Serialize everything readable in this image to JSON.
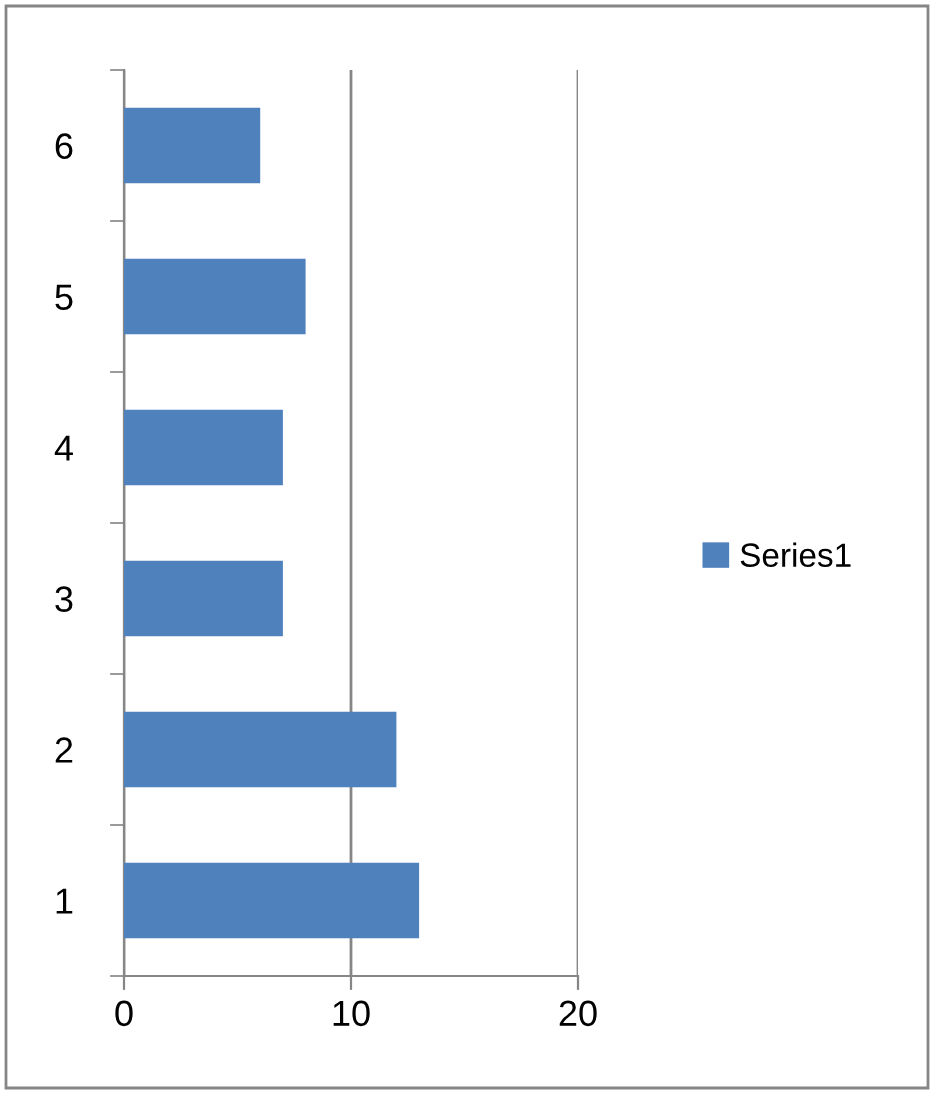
{
  "chart_data": {
    "type": "bar",
    "orientation": "horizontal",
    "categories": [
      "6",
      "5",
      "4",
      "3",
      "2",
      "1"
    ],
    "series": [
      {
        "name": "Series1",
        "color": "#4f81bd",
        "values": [
          6,
          8,
          7,
          7,
          12,
          13
        ]
      }
    ],
    "xlim": [
      0,
      20
    ],
    "xticks": [
      0,
      10,
      20
    ],
    "grid": "x",
    "legend": "right"
  }
}
